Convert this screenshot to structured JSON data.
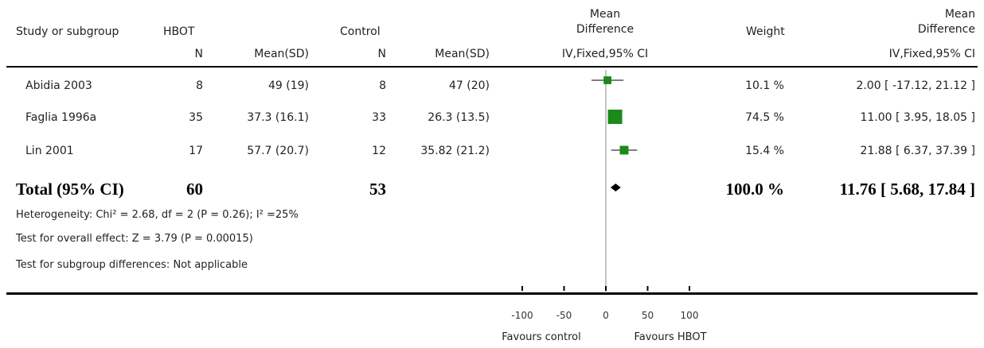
{
  "headers": {
    "study": "Study or subgroup",
    "exp_group": "HBOT",
    "ctrl_group": "Control",
    "md_line1": "Mean",
    "md_line2": "Difference",
    "weight": "Weight",
    "md2_line1": "Mean",
    "md2_line2": "Difference",
    "n1": "N",
    "meansd1": "Mean(SD)",
    "n2": "N",
    "meansd2": "Mean(SD)",
    "method": "IV,Fixed,95% CI",
    "method2": "IV,Fixed,95% CI"
  },
  "studies": [
    {
      "name": "Abidia 2003",
      "n_exp": "8",
      "mean_exp": "49 (19)",
      "n_ctrl": "8",
      "mean_ctrl": "47 (20)",
      "weight": "10.1 %",
      "ci_text": "2.00 [ -17.12, 21.12 ]"
    },
    {
      "name": "Faglia 1996a",
      "n_exp": "35",
      "mean_exp": "37.3 (16.1)",
      "n_ctrl": "33",
      "mean_ctrl": "26.3 (13.5)",
      "weight": "74.5 %",
      "ci_text": "11.00 [ 3.95, 18.05 ]"
    },
    {
      "name": "Lin 2001",
      "n_exp": "17",
      "mean_exp": "57.7 (20.7)",
      "n_ctrl": "12",
      "mean_ctrl": "35.82 (21.2)",
      "weight": "15.4 %",
      "ci_text": "21.88 [ 6.37, 37.39 ]"
    }
  ],
  "total": {
    "label": "Total (95% CI)",
    "n_exp": "60",
    "n_ctrl": "53",
    "weight": "100.0 %",
    "ci_text": "11.76 [ 5.68, 17.84 ]"
  },
  "stats": {
    "heterogeneity": "Heterogeneity: Chi² = 2.68, df = 2 (P = 0.26); I² =25%",
    "overall": "Test for overall effect: Z = 3.79 (P = 0.00015)",
    "subgroup": "Test for subgroup differences: Not applicable"
  },
  "axis": {
    "favours_left": "Favours control",
    "favours_right": "Favours HBOT"
  },
  "colors": {
    "marker": "#1a8a1a",
    "line": "#000000"
  },
  "chart_data": {
    "type": "forest",
    "xlim": [
      -100,
      100
    ],
    "ticks": [
      -100,
      -50,
      0,
      50,
      100
    ],
    "tick_labels": [
      "-100",
      "-50",
      "0",
      "50",
      "100"
    ],
    "studies": [
      {
        "name": "Abidia 2003",
        "estimate": 2.0,
        "lower": -17.12,
        "upper": 21.12,
        "weight": 10.1
      },
      {
        "name": "Faglia 1996a",
        "estimate": 11.0,
        "lower": 3.95,
        "upper": 18.05,
        "weight": 74.5
      },
      {
        "name": "Lin 2001",
        "estimate": 21.88,
        "lower": 6.37,
        "upper": 37.39,
        "weight": 15.4
      }
    ],
    "pooled": {
      "estimate": 11.76,
      "lower": 5.68,
      "upper": 17.84
    }
  }
}
